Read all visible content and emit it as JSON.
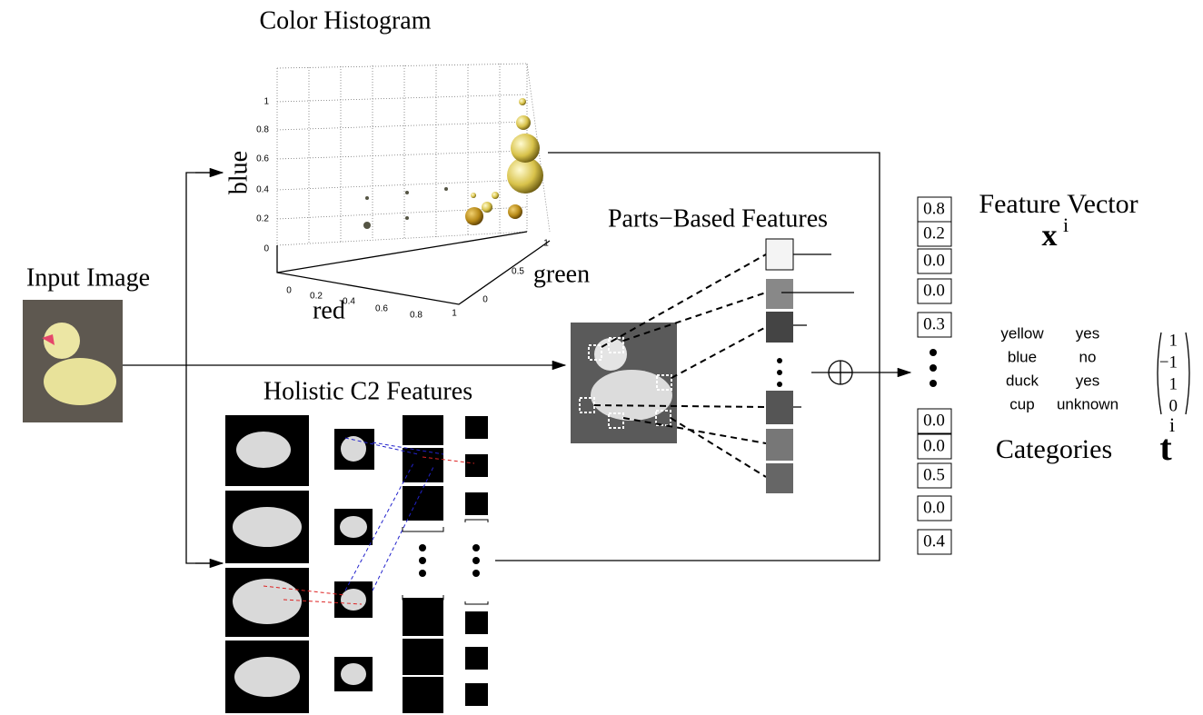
{
  "histogram": {
    "title": "Color Histogram",
    "z_label": "blue",
    "x_label": "red",
    "y_label": "green",
    "z_ticks": [
      "0",
      "0.2",
      "0.4",
      "0.6",
      "0.8",
      "1"
    ],
    "x_ticks": [
      "0",
      "0.2",
      "0.4",
      "0.6",
      "0.8",
      "1"
    ],
    "y_ticks": [
      "0",
      "0.5",
      "1"
    ]
  },
  "input_label": "Input Image",
  "holistic_label": "Holistic C2 Features",
  "parts_label": "Parts−Based Features",
  "feature_vector": {
    "title": "Feature Vector",
    "symbol": "x",
    "superscript": "i",
    "top_entries": [
      "0.8",
      "0.2",
      "0.0",
      "0.0",
      "0.3"
    ],
    "bottom_entries": [
      "0.0",
      "0.0",
      "0.5",
      "0.0",
      "0.4"
    ]
  },
  "categories": {
    "rows": [
      [
        "yellow",
        "yes"
      ],
      [
        "blue",
        "no"
      ],
      [
        "duck",
        "yes"
      ],
      [
        "cup",
        "unknown"
      ]
    ],
    "target": [
      "1",
      "−1",
      "1",
      "0"
    ],
    "title": "Categories",
    "symbol": "t",
    "superscript": "i"
  }
}
